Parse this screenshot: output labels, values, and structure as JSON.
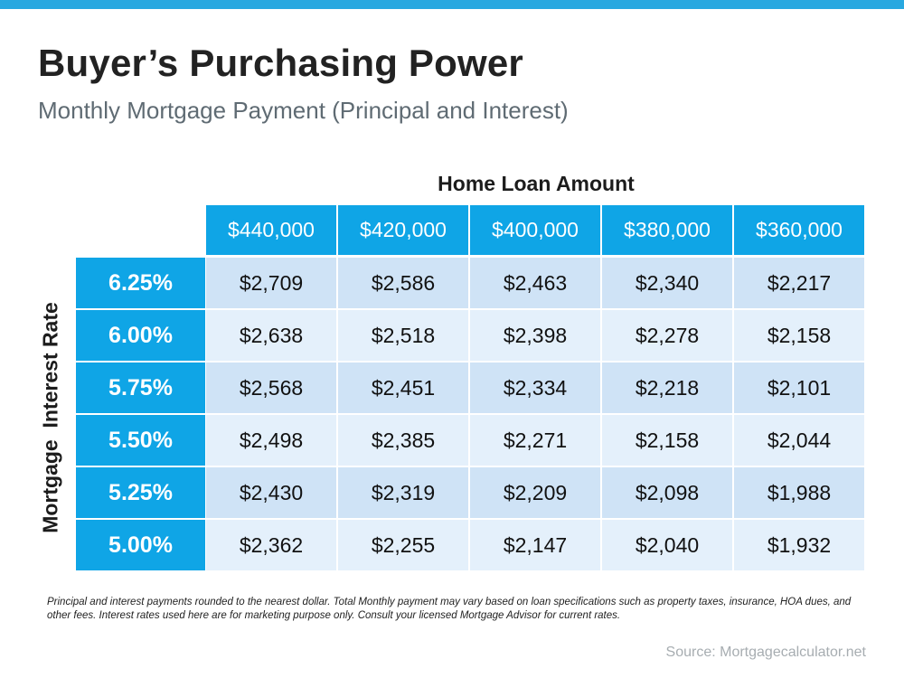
{
  "title": "Buyer’s Purchasing Power",
  "subtitle": "Monthly Mortgage Payment (Principal and Interest)",
  "chart_data": {
    "type": "table",
    "column_axis_label": "Home Loan Amount",
    "row_axis_label": "Mortgage  Interest Rate",
    "columns": [
      "$440,000",
      "$420,000",
      "$400,000",
      "$380,000",
      "$360,000"
    ],
    "rows": [
      {
        "rate": "6.25%",
        "values": [
          "$2,709",
          "$2,586",
          "$2,463",
          "$2,340",
          "$2,217"
        ]
      },
      {
        "rate": "6.00%",
        "values": [
          "$2,638",
          "$2,518",
          "$2,398",
          "$2,278",
          "$2,158"
        ]
      },
      {
        "rate": "5.75%",
        "values": [
          "$2,568",
          "$2,451",
          "$2,334",
          "$2,218",
          "$2,101"
        ]
      },
      {
        "rate": "5.50%",
        "values": [
          "$2,498",
          "$2,385",
          "$2,271",
          "$2,158",
          "$2,044"
        ]
      },
      {
        "rate": "5.25%",
        "values": [
          "$2,430",
          "$2,319",
          "$2,209",
          "$2,098",
          "$1,988"
        ]
      },
      {
        "rate": "5.00%",
        "values": [
          "$2,362",
          "$2,255",
          "$2,147",
          "$2,040",
          "$1,932"
        ]
      }
    ]
  },
  "footnote": "Principal and interest payments rounded to the nearest dollar. Total Monthly payment may vary based on loan specifications such as property taxes, insurance, HOA dues, and other fees. Interest rates used here are for marketing purpose only. Consult your licensed Mortgage Advisor for current rates.",
  "source": "Source: Mortgagecalculator.net",
  "colors": {
    "accent": "#0fa5e6",
    "top_bar": "#29a8e0",
    "row_fill_dark": "#cfe3f6",
    "row_fill_light": "#e4f0fb",
    "title_text": "#222222",
    "subtitle_text": "#5f6b73",
    "source_text": "#a7adb1"
  }
}
